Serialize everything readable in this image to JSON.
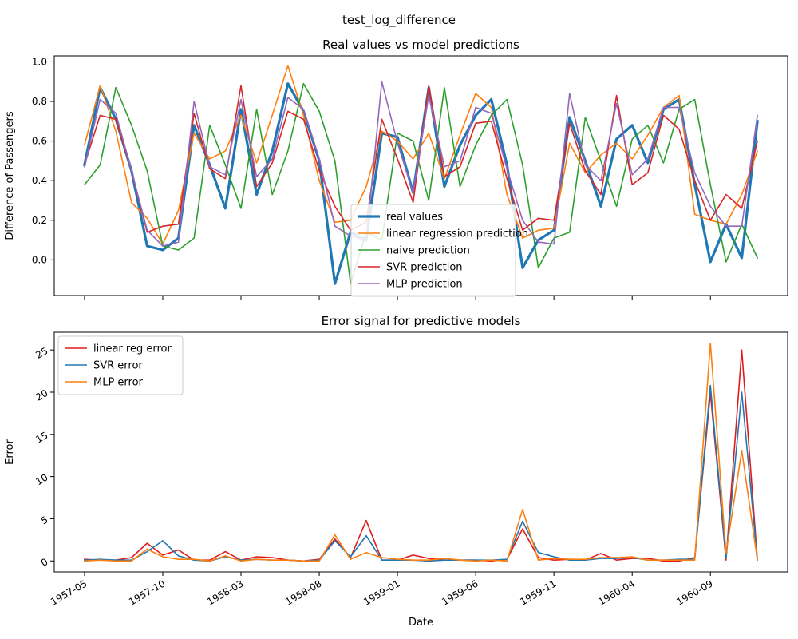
{
  "figure": {
    "suptitle": "test_log_difference"
  },
  "chart_data": [
    {
      "type": "line",
      "title": "Real values vs model predictions",
      "xlabel": "",
      "ylabel": "Difference of Passengers",
      "ylim": [
        -0.18,
        1.03
      ],
      "yticks": [
        0.0,
        0.2,
        0.4,
        0.6,
        0.8,
        1.0
      ],
      "ytick_labels": [
        "0.0",
        "0.2",
        "0.4",
        "0.6",
        "0.8",
        "1.0"
      ],
      "xtick_labels_shown": false,
      "legend_position": "lower-center",
      "x_start": "1957-05",
      "series": [
        {
          "name": "real values",
          "color": "#1f77b4",
          "width": 3.2,
          "values": [
            0.48,
            0.87,
            0.71,
            0.45,
            0.07,
            0.05,
            0.11,
            0.68,
            0.48,
            0.26,
            0.76,
            0.33,
            0.55,
            0.89,
            0.75,
            0.5,
            -0.12,
            0.14,
            0.1,
            0.64,
            0.62,
            0.34,
            0.87,
            0.37,
            0.58,
            0.73,
            0.81,
            0.48,
            -0.04,
            0.1,
            0.15,
            0.72,
            0.5,
            0.27,
            0.61,
            0.68,
            0.49,
            0.76,
            0.81,
            0.38,
            -0.01,
            0.18,
            0.01,
            0.7
          ]
        },
        {
          "name": "linear regression prediction",
          "color": "#ff7f0e",
          "width": 1.6,
          "values": [
            0.58,
            0.88,
            0.65,
            0.29,
            0.21,
            0.08,
            0.25,
            0.64,
            0.51,
            0.55,
            0.73,
            0.49,
            0.73,
            0.98,
            0.73,
            0.4,
            0.19,
            0.2,
            0.37,
            0.65,
            0.6,
            0.51,
            0.64,
            0.41,
            0.63,
            0.84,
            0.77,
            0.33,
            0.11,
            0.15,
            0.16,
            0.59,
            0.44,
            0.53,
            0.59,
            0.51,
            0.63,
            0.77,
            0.83,
            0.23,
            0.2,
            0.18,
            0.33,
            0.55
          ]
        },
        {
          "name": "naive prediction",
          "color": "#2ca02c",
          "width": 1.6,
          "values": [
            0.38,
            0.48,
            0.87,
            0.68,
            0.45,
            0.07,
            0.05,
            0.11,
            0.68,
            0.48,
            0.26,
            0.76,
            0.33,
            0.55,
            0.89,
            0.75,
            0.5,
            -0.12,
            0.14,
            0.1,
            0.64,
            0.6,
            0.3,
            0.87,
            0.37,
            0.58,
            0.73,
            0.81,
            0.48,
            -0.04,
            0.11,
            0.14,
            0.72,
            0.5,
            0.27,
            0.61,
            0.68,
            0.49,
            0.76,
            0.81,
            0.38,
            -0.01,
            0.18,
            0.01
          ]
        },
        {
          "name": "SVR prediction",
          "color": "#d62728",
          "width": 1.6,
          "values": [
            0.48,
            0.73,
            0.71,
            0.45,
            0.14,
            0.17,
            0.18,
            0.74,
            0.46,
            0.41,
            0.88,
            0.37,
            0.49,
            0.75,
            0.71,
            0.45,
            0.27,
            0.15,
            0.19,
            0.71,
            0.51,
            0.29,
            0.88,
            0.42,
            0.47,
            0.69,
            0.7,
            0.41,
            0.15,
            0.21,
            0.2,
            0.69,
            0.45,
            0.33,
            0.83,
            0.38,
            0.44,
            0.73,
            0.66,
            0.4,
            0.2,
            0.33,
            0.26,
            0.6
          ]
        },
        {
          "name": "MLP prediction",
          "color": "#9467bd",
          "width": 1.6,
          "values": [
            0.47,
            0.81,
            0.74,
            0.45,
            0.15,
            0.07,
            0.09,
            0.8,
            0.47,
            0.43,
            0.81,
            0.42,
            0.51,
            0.82,
            0.76,
            0.51,
            0.17,
            0.12,
            0.1,
            0.9,
            0.59,
            0.34,
            0.83,
            0.47,
            0.5,
            0.77,
            0.74,
            0.46,
            0.2,
            0.09,
            0.08,
            0.84,
            0.48,
            0.4,
            0.79,
            0.43,
            0.51,
            0.77,
            0.77,
            0.44,
            0.27,
            0.17,
            0.17,
            0.73
          ]
        }
      ]
    },
    {
      "type": "line",
      "title": "Error signal for predictive models",
      "xlabel": "Date",
      "ylabel": "Error",
      "ylim": [
        -1.3,
        27.1
      ],
      "yticks": [
        0,
        5,
        10,
        15,
        20,
        25
      ],
      "ytick_labels": [
        "0",
        "5",
        "10",
        "15",
        "20",
        "25"
      ],
      "legend_position": "upper-left",
      "x_start": "1957-05",
      "xtick_labels": [
        "1957-05",
        "1957-10",
        "1958-03",
        "1958-08",
        "1959-01",
        "1959-06",
        "1959-11",
        "1960-04",
        "1960-09"
      ],
      "xtick_positions": [
        0,
        5,
        10,
        15,
        20,
        25,
        30,
        35,
        40
      ],
      "series": [
        {
          "name": "linear reg error",
          "color": "#e31a1c",
          "width": 1.6,
          "values": [
            0.2,
            0.1,
            0.1,
            0.4,
            2.1,
            0.7,
            1.3,
            0.1,
            0.1,
            1.1,
            0.1,
            0.5,
            0.4,
            0.1,
            0.0,
            0.2,
            2.6,
            0.4,
            4.8,
            0.1,
            0.1,
            0.7,
            0.3,
            0.1,
            0.1,
            0.1,
            0.0,
            0.2,
            3.8,
            0.4,
            0.1,
            0.2,
            0.1,
            0.9,
            0.1,
            0.3,
            0.3,
            0.0,
            0.0,
            0.4,
            19.9,
            0.1,
            25.0,
            0.1
          ]
        },
        {
          "name": "SVR error",
          "color": "#1f77b4",
          "width": 1.6,
          "values": [
            0.1,
            0.2,
            0.1,
            0.1,
            1.1,
            2.4,
            0.6,
            0.1,
            0.0,
            0.5,
            0.1,
            0.2,
            0.1,
            0.1,
            0.0,
            0.1,
            2.4,
            0.5,
            3.0,
            0.1,
            0.1,
            0.1,
            0.0,
            0.1,
            0.1,
            0.1,
            0.1,
            0.2,
            4.7,
            1.0,
            0.5,
            0.1,
            0.1,
            0.3,
            0.3,
            0.4,
            0.1,
            0.1,
            0.2,
            0.2,
            20.8,
            0.3,
            20.0,
            0.1
          ]
        },
        {
          "name": "MLP error",
          "color": "#ff7f0e",
          "width": 1.6,
          "values": [
            0.0,
            0.1,
            0.0,
            0.0,
            1.4,
            0.5,
            0.2,
            0.2,
            0.0,
            0.6,
            0.0,
            0.2,
            0.1,
            0.1,
            0.0,
            0.0,
            3.1,
            0.2,
            1.0,
            0.4,
            0.2,
            0.1,
            0.1,
            0.3,
            0.1,
            0.0,
            0.1,
            0.0,
            6.1,
            0.1,
            0.3,
            0.2,
            0.2,
            0.4,
            0.4,
            0.5,
            0.1,
            0.1,
            0.1,
            0.1,
            25.8,
            0.9,
            13.1,
            0.1
          ]
        }
      ]
    }
  ]
}
